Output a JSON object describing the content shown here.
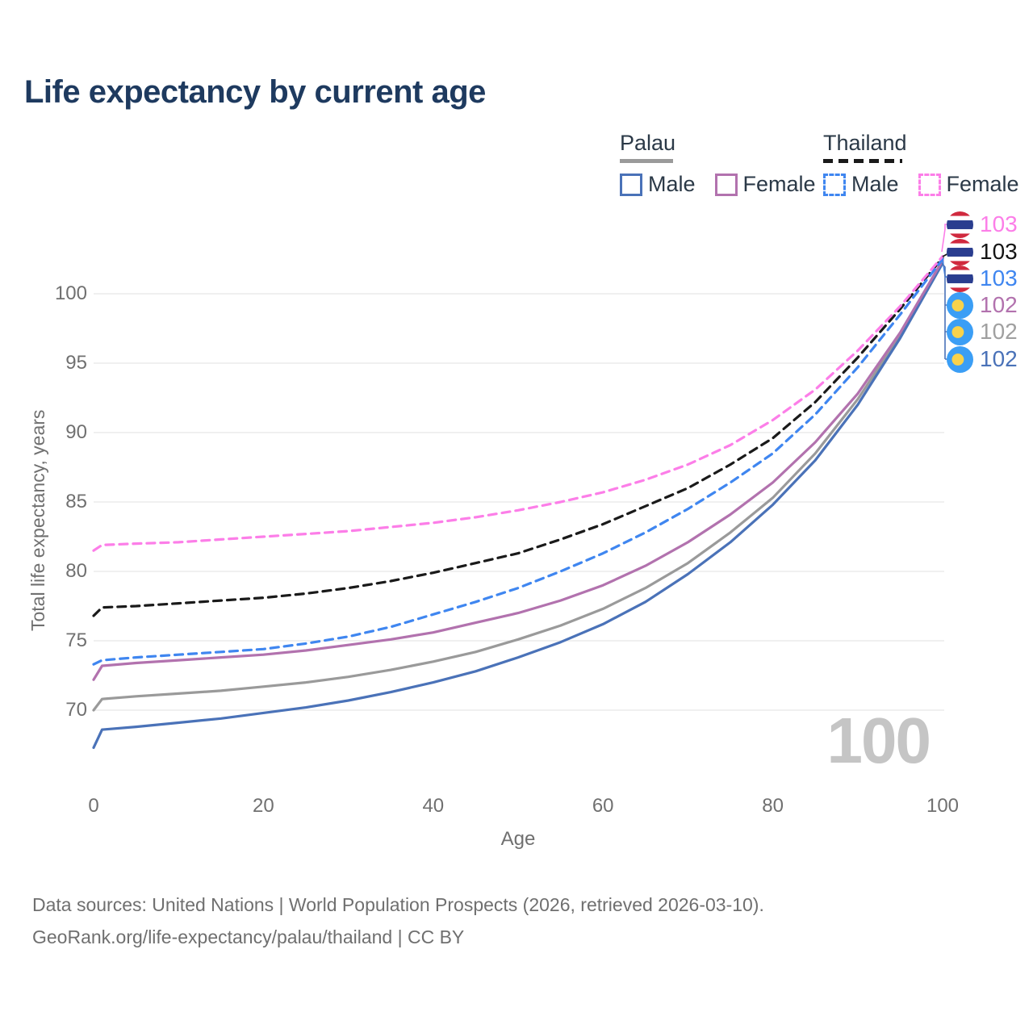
{
  "title": "Life expectancy by current age",
  "legend": {
    "groups": [
      {
        "country": "Palau",
        "line_style": "solid",
        "underline_color": "#9a9a9a",
        "items": [
          {
            "label": "Male",
            "color": "#4a72b8",
            "dashed": false
          },
          {
            "label": "Female",
            "color": "#b272ae",
            "dashed": false
          }
        ]
      },
      {
        "country": "Thailand",
        "line_style": "dashed",
        "underline_color": "#1a1a1a",
        "items": [
          {
            "label": "Male",
            "color": "#3f86f0",
            "dashed": true
          },
          {
            "label": "Female",
            "color": "#fc7ee8",
            "dashed": true
          }
        ]
      }
    ]
  },
  "axes": {
    "y_title": "Total life expectancy, years",
    "x_title": "Age",
    "y_ticks": [
      70,
      75,
      80,
      85,
      90,
      95,
      100
    ],
    "x_ticks": [
      0,
      20,
      40,
      60,
      80,
      100
    ],
    "x_range": [
      0,
      100
    ],
    "grid": true
  },
  "watermark_age_counter": "100",
  "footer": {
    "line1": "Data sources: United Nations | World Population Prospects (2026, retrieved 2026-03-10).",
    "line2": "GeoRank.org/life-expectancy/palau/thailand | CC BY"
  },
  "end_labels": [
    {
      "value": "103",
      "color": "#fc7ee8",
      "flag": "thailand-flag-icon"
    },
    {
      "value": "103",
      "color": "#141414",
      "flag": "thailand-flag-icon"
    },
    {
      "value": "103",
      "color": "#3f86f0",
      "flag": "thailand-flag-icon"
    },
    {
      "value": "102",
      "color": "#b272ae",
      "flag": "palau-flag-icon"
    },
    {
      "value": "102",
      "color": "#a0a0a0",
      "flag": "palau-flag-icon"
    },
    {
      "value": "102",
      "color": "#4a72b8",
      "flag": "palau-flag-icon"
    }
  ],
  "flag_colors": {
    "thailand": {
      "red": "#d0293e",
      "white": "#ffffff",
      "blue": "#2a3d8f"
    },
    "palau": {
      "field": "#3b9ef5",
      "disc": "#f9d24b"
    }
  },
  "chart_data": {
    "type": "line",
    "title": "Life expectancy by current age",
    "xlabel": "Age",
    "ylabel": "Total life expectancy, years",
    "xlim": [
      0,
      100
    ],
    "ylim_shown_ticks": [
      70,
      100
    ],
    "legend_position": "top-right",
    "grid": "horizontal",
    "x": [
      0,
      1,
      5,
      10,
      15,
      20,
      25,
      30,
      35,
      40,
      45,
      50,
      55,
      60,
      65,
      70,
      75,
      80,
      85,
      90,
      95,
      100
    ],
    "series": [
      {
        "name": "Palau Both sexes",
        "country": "Palau",
        "sex": "both",
        "color": "#9a9a9a",
        "dashed": false,
        "values": [
          70.0,
          70.8,
          71.0,
          71.2,
          71.4,
          71.7,
          72.0,
          72.4,
          72.9,
          73.5,
          74.2,
          75.1,
          76.1,
          77.3,
          78.8,
          80.6,
          82.8,
          85.3,
          88.5,
          92.4,
          97.0,
          102.3
        ],
        "end_label": "102"
      },
      {
        "name": "Palau Male",
        "country": "Palau",
        "sex": "male",
        "color": "#4a72b8",
        "dashed": false,
        "values": [
          67.3,
          68.6,
          68.8,
          69.1,
          69.4,
          69.8,
          70.2,
          70.7,
          71.3,
          72.0,
          72.8,
          73.8,
          74.9,
          76.2,
          77.8,
          79.8,
          82.1,
          84.8,
          88.0,
          92.0,
          96.8,
          102.2
        ],
        "end_label": "102"
      },
      {
        "name": "Palau Female",
        "country": "Palau",
        "sex": "female",
        "color": "#b272ae",
        "dashed": false,
        "values": [
          72.2,
          73.2,
          73.4,
          73.6,
          73.8,
          74.0,
          74.3,
          74.7,
          75.1,
          75.6,
          76.3,
          77.0,
          77.9,
          79.0,
          80.4,
          82.1,
          84.1,
          86.4,
          89.3,
          92.8,
          97.2,
          102.4
        ],
        "end_label": "102"
      },
      {
        "name": "Thailand Both sexes",
        "country": "Thailand",
        "sex": "both",
        "color": "#1a1a1a",
        "dashed": true,
        "values": [
          76.8,
          77.4,
          77.5,
          77.7,
          77.9,
          78.1,
          78.4,
          78.8,
          79.3,
          79.9,
          80.6,
          81.3,
          82.3,
          83.4,
          84.7,
          86.0,
          87.7,
          89.6,
          92.2,
          95.4,
          98.9,
          102.6
        ],
        "end_label": "103"
      },
      {
        "name": "Thailand Male",
        "country": "Thailand",
        "sex": "male",
        "color": "#3f86f0",
        "dashed": true,
        "values": [
          73.3,
          73.6,
          73.8,
          74.0,
          74.2,
          74.4,
          74.8,
          75.3,
          76.0,
          76.9,
          77.8,
          78.8,
          80.0,
          81.3,
          82.8,
          84.5,
          86.4,
          88.5,
          91.3,
          94.7,
          98.5,
          102.5
        ],
        "end_label": "103"
      },
      {
        "name": "Thailand Female",
        "country": "Thailand",
        "sex": "female",
        "color": "#fc7ee8",
        "dashed": true,
        "values": [
          81.5,
          81.9,
          82.0,
          82.1,
          82.3,
          82.5,
          82.7,
          82.9,
          83.2,
          83.5,
          83.9,
          84.4,
          85.0,
          85.7,
          86.6,
          87.7,
          89.1,
          90.9,
          93.1,
          95.9,
          99.1,
          102.7
        ],
        "end_label": "103"
      }
    ]
  }
}
